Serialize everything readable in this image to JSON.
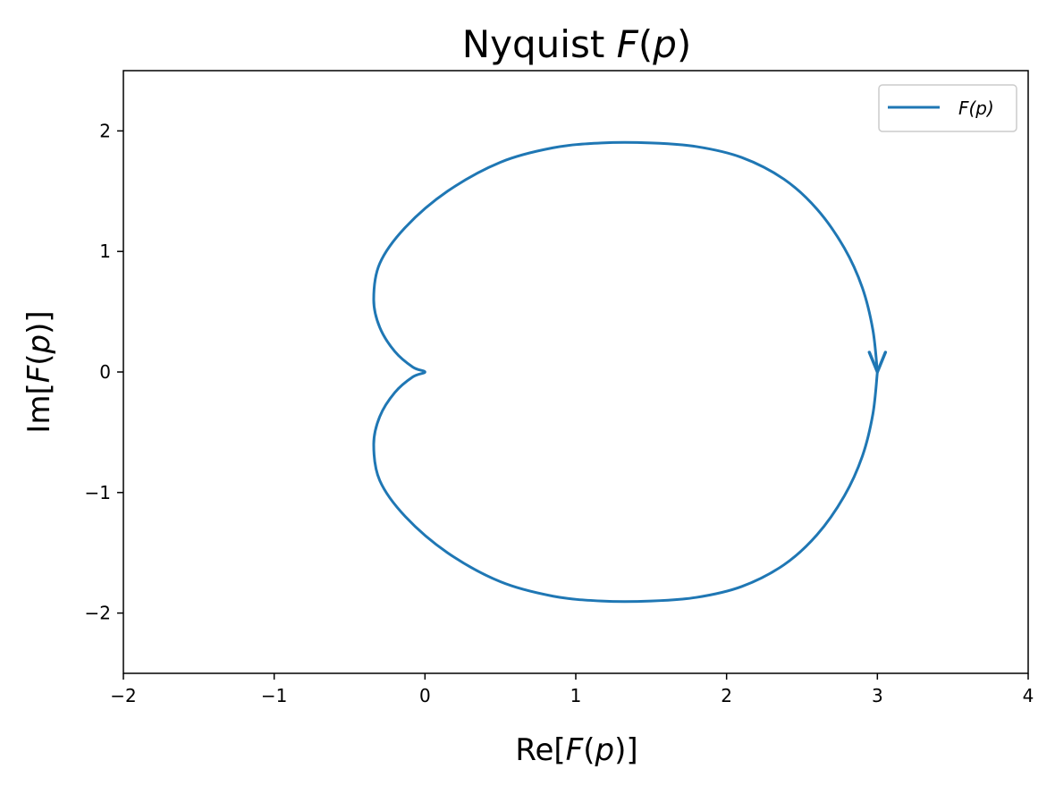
{
  "chart_data": {
    "type": "line",
    "title": {
      "prefix": "Nyquist ",
      "italic": "F",
      "suffix": "(",
      "italic2": "p",
      "suffix2": ")"
    },
    "xlabel": {
      "prefix": "Re[",
      "italic": "F",
      "mid": "(",
      "italic2": "p",
      "suffix": ")]"
    },
    "ylabel": {
      "prefix": "Im[",
      "italic": "F",
      "mid": "(",
      "italic2": "p",
      "suffix": ")]"
    },
    "xlim": [
      -2,
      4
    ],
    "ylim": [
      -2.5,
      2.5
    ],
    "xticks": [
      -2,
      -1,
      0,
      1,
      2,
      3,
      4
    ],
    "xtick_labels": [
      "−2",
      "−1",
      "0",
      "1",
      "2",
      "3",
      "4"
    ],
    "yticks": [
      -2,
      -1,
      0,
      1,
      2
    ],
    "ytick_labels": [
      "−2",
      "−1",
      "0",
      "1",
      "2"
    ],
    "grid": false,
    "legend_position": "top-right",
    "series": [
      {
        "name": "F(p)",
        "color": "#1f77b4",
        "arrow_at": [
          3.0,
          0.0
        ],
        "arrow_direction": "down",
        "points": [
          [
            3.0,
            0.0
          ],
          [
            2.97,
            0.35
          ],
          [
            2.9,
            0.7
          ],
          [
            2.78,
            1.03
          ],
          [
            2.6,
            1.35
          ],
          [
            2.38,
            1.6
          ],
          [
            2.1,
            1.78
          ],
          [
            1.8,
            1.87
          ],
          [
            1.5,
            1.9
          ],
          [
            1.17,
            1.9
          ],
          [
            0.85,
            1.86
          ],
          [
            0.5,
            1.74
          ],
          [
            0.15,
            1.5
          ],
          [
            -0.13,
            1.2
          ],
          [
            -0.3,
            0.9
          ],
          [
            -0.34,
            0.6
          ],
          [
            -0.3,
            0.37
          ],
          [
            -0.2,
            0.17
          ],
          [
            -0.08,
            0.04
          ],
          [
            0.0,
            0.0
          ],
          [
            -0.08,
            -0.04
          ],
          [
            -0.2,
            -0.17
          ],
          [
            -0.3,
            -0.37
          ],
          [
            -0.34,
            -0.6
          ],
          [
            -0.3,
            -0.9
          ],
          [
            -0.13,
            -1.2
          ],
          [
            0.15,
            -1.5
          ],
          [
            0.5,
            -1.74
          ],
          [
            0.85,
            -1.86
          ],
          [
            1.17,
            -1.9
          ],
          [
            1.5,
            -1.9
          ],
          [
            1.8,
            -1.87
          ],
          [
            2.1,
            -1.78
          ],
          [
            2.38,
            -1.6
          ],
          [
            2.6,
            -1.35
          ],
          [
            2.78,
            -1.03
          ],
          [
            2.9,
            -0.7
          ],
          [
            2.97,
            -0.35
          ],
          [
            3.0,
            0.0
          ]
        ]
      }
    ]
  }
}
